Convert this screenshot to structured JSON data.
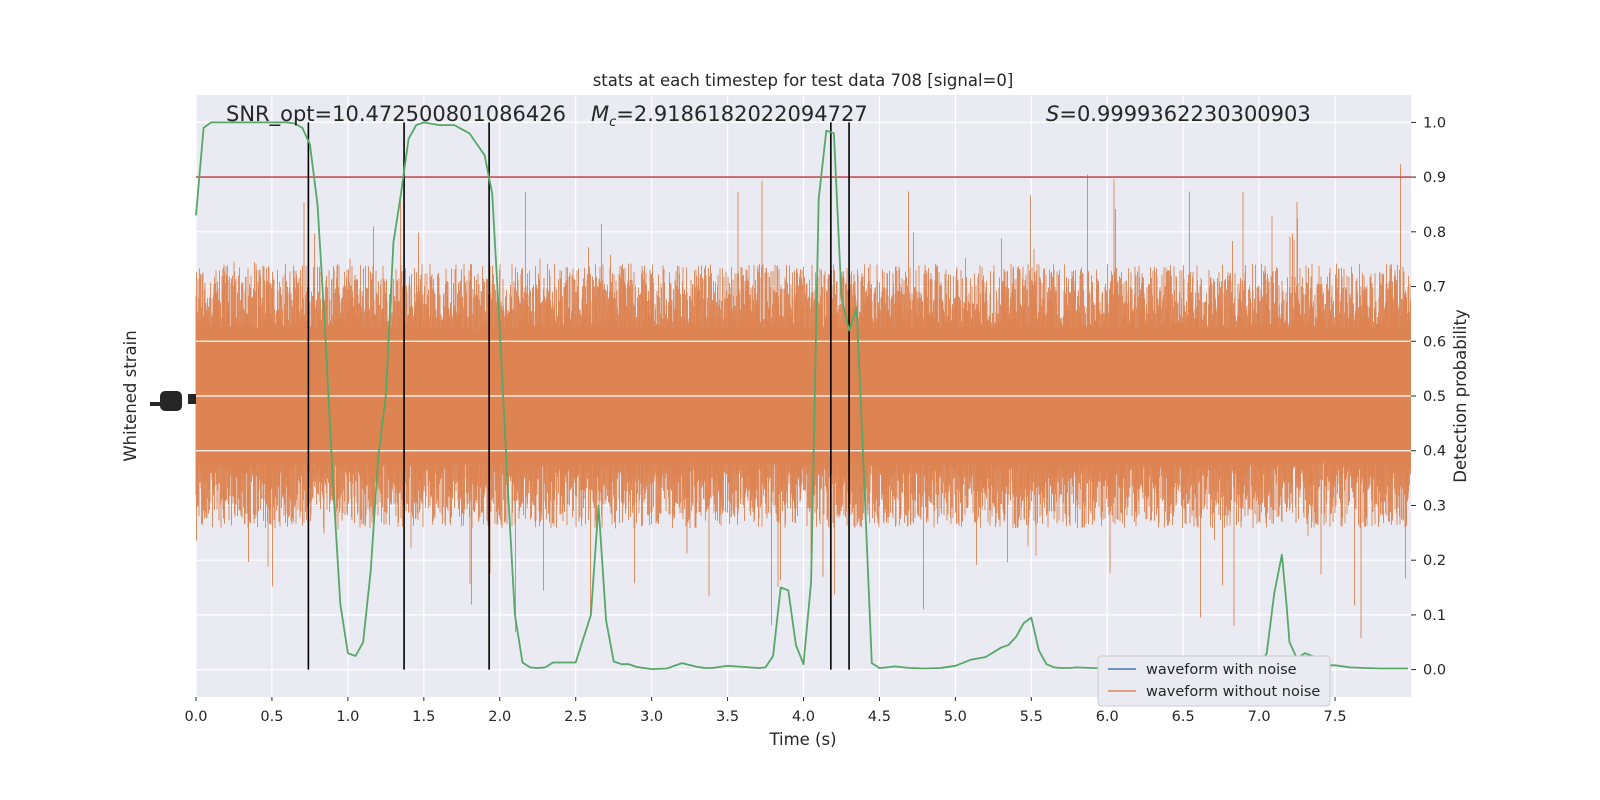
{
  "chart_data": {
    "type": "line",
    "title": "stats at each timestep for test data 708 [signal=0]",
    "xlabel": "Time (s)",
    "ylabel_left": "Whitened strain",
    "ylabel_right": "Detection probability",
    "xlim": [
      0.0,
      8.0
    ],
    "ylim_right": [
      -0.05,
      1.05
    ],
    "xticks": [
      0.0,
      0.5,
      1.0,
      1.5,
      2.0,
      2.5,
      3.0,
      3.5,
      4.0,
      4.5,
      5.0,
      5.5,
      6.0,
      6.5,
      7.0,
      7.5
    ],
    "yticks_right": [
      0.0,
      0.1,
      0.2,
      0.3,
      0.4,
      0.5,
      0.6,
      0.7,
      0.8,
      0.9,
      1.0
    ],
    "grid": true,
    "annotations": {
      "snr_label": "SNR_opt=10.472500801086426",
      "mc_label": "=2.9186182022094727",
      "mc_symbol": "M",
      "mc_subscript": "c",
      "s_label": "=0.9999362230300903",
      "s_symbol": "S"
    },
    "threshold": 0.9,
    "threshold_color": "#c44e52",
    "vertical_lines": [
      0.74,
      1.37,
      1.93,
      4.18,
      4.3
    ],
    "series": [
      {
        "name": "waveform with noise",
        "color": "#4c72b0",
        "kind": "flat-strain",
        "values_right": [
          0.5,
          0.5
        ]
      },
      {
        "name": "waveform without noise",
        "color": "#dd8452",
        "kind": "noise-band",
        "envelope_right": {
          "center": 0.5,
          "typical_high": 0.72,
          "typical_low": 0.28,
          "max_spike": 1.0,
          "min_spike": 0.0
        }
      }
    ],
    "detection_probability": {
      "color": "#55a868",
      "x": [
        0.0,
        0.05,
        0.1,
        0.2,
        0.3,
        0.4,
        0.5,
        0.6,
        0.65,
        0.7,
        0.75,
        0.8,
        0.85,
        0.9,
        0.95,
        1.0,
        1.05,
        1.1,
        1.15,
        1.2,
        1.25,
        1.3,
        1.35,
        1.4,
        1.45,
        1.5,
        1.6,
        1.7,
        1.8,
        1.85,
        1.9,
        1.95,
        2.0,
        2.05,
        2.1,
        2.15,
        2.2,
        2.25,
        2.3,
        2.35,
        2.4,
        2.5,
        2.6,
        2.65,
        2.7,
        2.75,
        2.8,
        2.85,
        2.9,
        3.0,
        3.1,
        3.2,
        3.3,
        3.35,
        3.4,
        3.5,
        3.6,
        3.7,
        3.75,
        3.8,
        3.85,
        3.9,
        3.95,
        4.0,
        4.05,
        4.1,
        4.15,
        4.2,
        4.25,
        4.3,
        4.35,
        4.4,
        4.45,
        4.5,
        4.55,
        4.6,
        4.7,
        4.8,
        4.9,
        5.0,
        5.1,
        5.2,
        5.3,
        5.35,
        5.4,
        5.45,
        5.5,
        5.55,
        5.6,
        5.65,
        5.7,
        5.75,
        5.8,
        5.9,
        6.0,
        6.1,
        6.2,
        6.3,
        6.4,
        6.5,
        6.6,
        6.7,
        6.8,
        6.9,
        7.0,
        7.05,
        7.1,
        7.15,
        7.18,
        7.2,
        7.25,
        7.3,
        7.35,
        7.4,
        7.45,
        7.5,
        7.6,
        7.7,
        7.8,
        7.9,
        7.98
      ],
      "y": [
        0.83,
        0.99,
        1.0,
        1.0,
        1.0,
        1.0,
        1.0,
        1.0,
        0.998,
        0.99,
        0.96,
        0.85,
        0.62,
        0.35,
        0.12,
        0.03,
        0.025,
        0.05,
        0.18,
        0.39,
        0.5,
        0.78,
        0.87,
        0.97,
        0.995,
        1.0,
        0.995,
        0.995,
        0.98,
        0.96,
        0.94,
        0.87,
        0.62,
        0.35,
        0.1,
        0.013,
        0.004,
        0.003,
        0.004,
        0.013,
        0.013,
        0.013,
        0.1,
        0.3,
        0.09,
        0.015,
        0.01,
        0.01,
        0.005,
        0.001,
        0.002,
        0.012,
        0.005,
        0.003,
        0.003,
        0.007,
        0.005,
        0.003,
        0.004,
        0.025,
        0.15,
        0.145,
        0.045,
        0.01,
        0.16,
        0.86,
        0.985,
        0.98,
        0.68,
        0.62,
        0.66,
        0.34,
        0.012,
        0.003,
        0.004,
        0.006,
        0.003,
        0.002,
        0.003,
        0.007,
        0.018,
        0.023,
        0.04,
        0.045,
        0.06,
        0.085,
        0.095,
        0.035,
        0.01,
        0.004,
        0.003,
        0.003,
        0.004,
        0.003,
        0.002,
        0.002,
        0.002,
        0.002,
        0.002,
        0.003,
        0.003,
        0.003,
        0.003,
        0.003,
        0.004,
        0.03,
        0.14,
        0.21,
        0.12,
        0.05,
        0.02,
        0.03,
        0.025,
        0.01,
        0.008,
        0.008,
        0.004,
        0.003,
        0.002,
        0.002,
        0.002
      ]
    }
  }
}
